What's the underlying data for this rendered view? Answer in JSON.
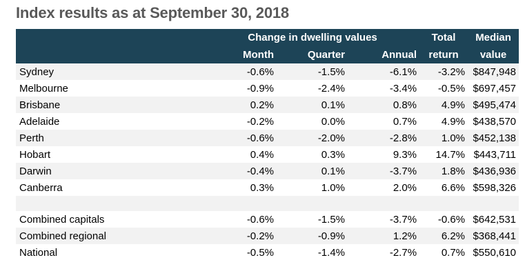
{
  "title": "Index results as at September 30, 2018",
  "header": {
    "group_label": "Change in dwelling values",
    "month": "Month",
    "quarter": "Quarter",
    "annual": "Annual",
    "total_line1": "Total",
    "total_line2": "return",
    "median_line1": "Median",
    "median_line2": "value"
  },
  "rows": [
    {
      "region": "Sydney",
      "month": "-0.6%",
      "quarter": "-1.5%",
      "annual": "-6.1%",
      "total": "-3.2%",
      "median": "$847,948"
    },
    {
      "region": "Melbourne",
      "month": "-0.9%",
      "quarter": "-2.4%",
      "annual": "-3.4%",
      "total": "-0.5%",
      "median": "$697,457"
    },
    {
      "region": "Brisbane",
      "month": "0.2%",
      "quarter": "0.1%",
      "annual": "0.8%",
      "total": "4.9%",
      "median": "$495,474"
    },
    {
      "region": "Adelaide",
      "month": "-0.2%",
      "quarter": "0.0%",
      "annual": "0.7%",
      "total": "4.9%",
      "median": "$438,570"
    },
    {
      "region": "Perth",
      "month": "-0.6%",
      "quarter": "-2.0%",
      "annual": "-2.8%",
      "total": "1.0%",
      "median": "$452,138"
    },
    {
      "region": "Hobart",
      "month": "0.4%",
      "quarter": "0.3%",
      "annual": "9.3%",
      "total": "14.7%",
      "median": "$443,711"
    },
    {
      "region": "Darwin",
      "month": "-0.4%",
      "quarter": "0.1%",
      "annual": "-3.7%",
      "total": "1.8%",
      "median": "$436,936"
    },
    {
      "region": "Canberra",
      "month": "0.3%",
      "quarter": "1.0%",
      "annual": "2.0%",
      "total": "6.6%",
      "median": "$598,326"
    },
    {
      "region": "Combined capitals",
      "month": "-0.6%",
      "quarter": "-1.5%",
      "annual": "-3.7%",
      "total": "-0.6%",
      "median": "$642,531"
    },
    {
      "region": "Combined regional",
      "month": "-0.2%",
      "quarter": "-0.9%",
      "annual": "1.2%",
      "total": "6.2%",
      "median": "$368,441"
    },
    {
      "region": "National",
      "month": "-0.5%",
      "quarter": "-1.4%",
      "annual": "-2.7%",
      "total": "0.7%",
      "median": "$550,610"
    }
  ],
  "colors": {
    "header_bg": "#1d4457",
    "stripe_bg": "#f2f2f2",
    "title_color": "#595959"
  }
}
